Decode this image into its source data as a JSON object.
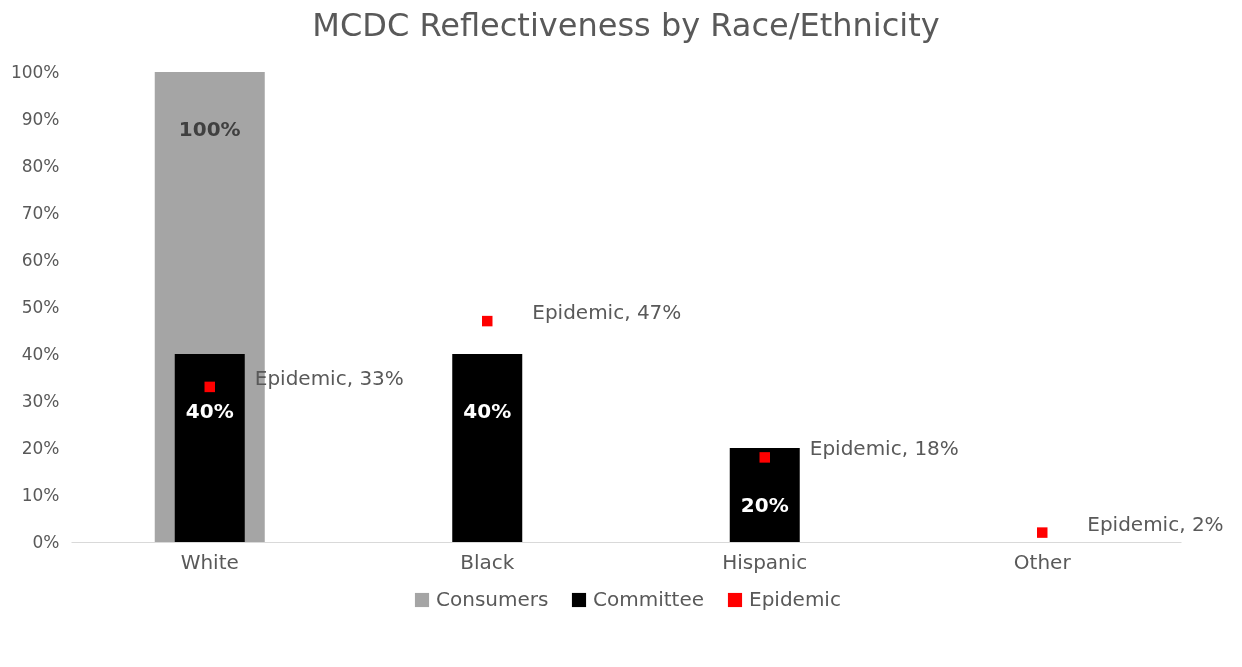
{
  "chart_data": {
    "type": "bar",
    "title": "MCDC Reflectiveness by Race/Ethnicity",
    "categories": [
      "White",
      "Black",
      "Hispanic",
      "Other"
    ],
    "series": [
      {
        "name": "Consumers",
        "color": "#a5a5a5",
        "values": [
          100,
          null,
          null,
          null
        ],
        "value_labels": [
          "100%",
          null,
          null,
          null
        ]
      },
      {
        "name": "Committee",
        "color": "#000000",
        "values": [
          40,
          40,
          20,
          null
        ],
        "value_labels": [
          "40%",
          "40%",
          "20%",
          null
        ]
      },
      {
        "name": "Epidemic",
        "type": "scatter",
        "color": "#ff0000",
        "marker": "square",
        "x": [
          "White",
          "Black",
          "Hispanic",
          "Other"
        ],
        "values": [
          33,
          47,
          18,
          2
        ]
      }
    ],
    "ylim": [
      0,
      100
    ],
    "yticks": [
      {
        "value": 0,
        "label": "0%"
      },
      {
        "value": 10,
        "label": "10%"
      },
      {
        "value": 20,
        "label": "20%"
      },
      {
        "value": 30,
        "label": "30%"
      },
      {
        "value": 40,
        "label": "40%"
      },
      {
        "value": 50,
        "label": "50%"
      },
      {
        "value": 60,
        "label": "60%"
      },
      {
        "value": 70,
        "label": "70%"
      },
      {
        "value": 80,
        "label": "80%"
      },
      {
        "value": 90,
        "label": "90%"
      },
      {
        "value": 100,
        "label": "100%"
      }
    ],
    "annotations": [
      {
        "text": "Epidemic, 33%",
        "x": "White",
        "y": 33
      },
      {
        "text": "Epidemic, 47%",
        "x": "Black",
        "y": 47
      },
      {
        "text": "Epidemic, 18%",
        "x": "Hispanic",
        "y": 18
      },
      {
        "text": "Epidemic, 2%",
        "x": "Other",
        "y": 2
      }
    ],
    "grid": false,
    "legend": "bottom"
  }
}
